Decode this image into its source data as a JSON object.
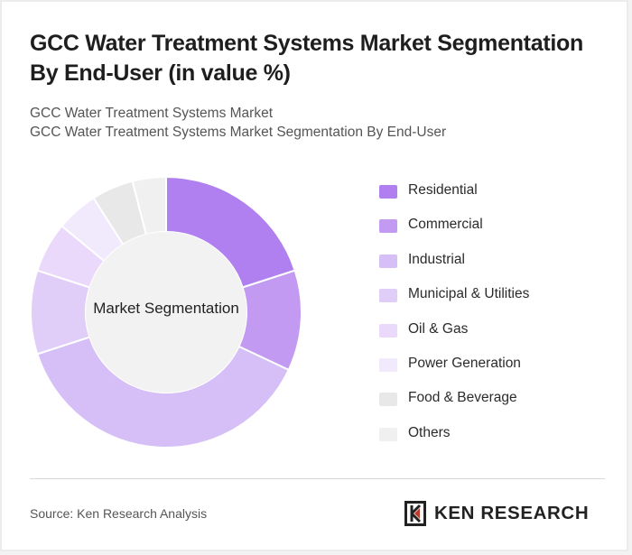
{
  "header": {
    "title": "GCC Water Treatment Systems Market Segmentation By End-User (in value %)",
    "subtitle_line1": "GCC Water Treatment Systems Market",
    "subtitle_line2": "GCC Water Treatment Systems Market Segmentation By End-User"
  },
  "chart_data": {
    "type": "pie",
    "donut": true,
    "center_label": "Market Segmentation",
    "categories": [
      "Residential",
      "Commercial",
      "Industrial",
      "Municipal & Utilities",
      "Oil & Gas",
      "Power Generation",
      "Food & Beverage",
      "Others"
    ],
    "values": [
      20,
      12,
      38,
      10,
      6,
      5,
      5,
      4
    ],
    "colors": [
      "#b07ff0",
      "#c39af2",
      "#d5bff6",
      "#e0cdf8",
      "#ead9fb",
      "#f1e9fc",
      "#e8e8e8",
      "#f0f0f0"
    ],
    "legend_position": "right"
  },
  "footer": {
    "source": "Source: Ken Research Analysis",
    "logo_text": "KEN RESEARCH"
  }
}
